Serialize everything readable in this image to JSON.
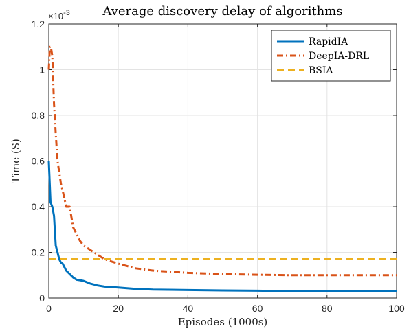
{
  "chart_data": {
    "type": "line",
    "title": "Average discovery delay of algorithms",
    "xlabel": "Episodes (1000s)",
    "ylabel": "Time (S)",
    "y_scale_note": "×10",
    "y_scale_exponent": "-3",
    "xlim": [
      0,
      100
    ],
    "ylim": [
      0,
      1.2
    ],
    "xticks": [
      0,
      20,
      40,
      60,
      80,
      100
    ],
    "xtick_labels": [
      "0",
      "20",
      "40",
      "60",
      "80",
      "100"
    ],
    "yticks": [
      0,
      0.2,
      0.4,
      0.6,
      0.8,
      1.0,
      1.2
    ],
    "ytick_labels": [
      "0",
      "0.2",
      "0.4",
      "0.6",
      "0.8",
      "1",
      "1.2"
    ],
    "grid": true,
    "legend_position": "top-right",
    "series": [
      {
        "name": "RapidIA",
        "color": "#0072BD",
        "style": "solid",
        "x": [
          0,
          0.5,
          1,
          1.5,
          2,
          2.5,
          3,
          3.5,
          4,
          5,
          6,
          7,
          8,
          9,
          10,
          12,
          14,
          16,
          18,
          20,
          25,
          30,
          40,
          50,
          60,
          70,
          80,
          90,
          100
        ],
        "y": [
          0.6,
          0.42,
          0.4,
          0.36,
          0.23,
          0.2,
          0.17,
          0.155,
          0.15,
          0.12,
          0.105,
          0.09,
          0.08,
          0.078,
          0.075,
          0.063,
          0.055,
          0.05,
          0.048,
          0.046,
          0.04,
          0.037,
          0.035,
          0.033,
          0.032,
          0.031,
          0.031,
          0.03,
          0.03
        ]
      },
      {
        "name": "DeepIA-DRL",
        "color": "#D95319",
        "style": "dash-dot",
        "x": [
          0,
          0.3,
          0.6,
          1,
          1.5,
          2,
          2.5,
          3,
          3.5,
          4,
          5,
          6,
          7,
          8,
          9,
          10,
          12,
          14,
          16,
          18,
          20,
          25,
          30,
          40,
          50,
          60,
          70,
          80,
          90,
          100
        ],
        "y": [
          1.0,
          1.1,
          1.1,
          1.06,
          0.85,
          0.72,
          0.6,
          0.55,
          0.5,
          0.47,
          0.4,
          0.4,
          0.31,
          0.28,
          0.25,
          0.23,
          0.21,
          0.19,
          0.17,
          0.16,
          0.15,
          0.13,
          0.12,
          0.11,
          0.105,
          0.102,
          0.1,
          0.1,
          0.1,
          0.1
        ]
      },
      {
        "name": "BSIA",
        "color": "#EDB120",
        "style": "dashed",
        "x": [
          0,
          100
        ],
        "y": [
          0.17,
          0.17
        ]
      }
    ]
  }
}
